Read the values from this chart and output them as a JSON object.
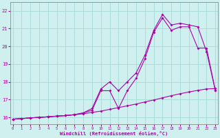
{
  "xlabel": "Windchill (Refroidissement éolien,°C)",
  "background_color": "#cff0ee",
  "grid_color": "#a8ddd8",
  "line_color": "#aa00aa",
  "x_ticks": [
    0,
    1,
    2,
    3,
    4,
    5,
    6,
    7,
    8,
    9,
    10,
    11,
    12,
    13,
    14,
    15,
    16,
    17,
    18,
    19,
    20,
    21,
    22,
    23
  ],
  "y_ticks": [
    16,
    17,
    18,
    19,
    20,
    21,
    22
  ],
  "xlim": [
    -0.3,
    23.3
  ],
  "ylim": [
    15.6,
    22.5
  ],
  "line1_x": [
    0,
    1,
    2,
    3,
    4,
    5,
    6,
    7,
    8,
    9,
    10,
    11,
    12,
    13,
    14,
    15,
    16,
    17,
    18,
    19,
    20,
    21,
    22,
    23
  ],
  "line1_y": [
    15.9,
    15.93,
    15.97,
    16.0,
    16.03,
    16.07,
    16.1,
    16.15,
    16.2,
    16.28,
    16.35,
    16.45,
    16.55,
    16.65,
    16.75,
    16.87,
    16.98,
    17.1,
    17.22,
    17.33,
    17.43,
    17.52,
    17.6,
    17.62
  ],
  "line2_x": [
    0,
    1,
    2,
    3,
    4,
    5,
    6,
    7,
    8,
    9,
    10,
    11,
    12,
    13,
    14,
    15,
    16,
    17,
    18,
    19,
    20,
    21,
    22,
    23
  ],
  "line2_y": [
    15.9,
    15.93,
    15.97,
    16.0,
    16.03,
    16.07,
    16.1,
    16.15,
    16.25,
    16.4,
    17.5,
    17.5,
    16.5,
    17.5,
    18.2,
    19.3,
    20.8,
    21.6,
    20.9,
    21.1,
    21.1,
    19.9,
    19.9,
    17.5
  ],
  "line3_x": [
    0,
    1,
    2,
    3,
    4,
    5,
    6,
    7,
    8,
    9,
    10,
    11,
    12,
    13,
    14,
    15,
    16,
    17,
    18,
    19,
    20,
    21,
    22,
    23
  ],
  "line3_y": [
    15.9,
    15.93,
    15.97,
    16.0,
    16.03,
    16.07,
    16.1,
    16.15,
    16.25,
    16.5,
    17.6,
    18.0,
    17.5,
    18.0,
    18.5,
    19.5,
    20.9,
    21.8,
    21.2,
    21.3,
    21.2,
    21.1,
    19.7,
    17.5
  ]
}
